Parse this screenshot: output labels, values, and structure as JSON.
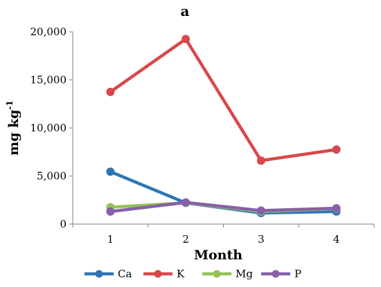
{
  "chart_data": {
    "type": "line",
    "title": "a",
    "xlabel": "Month",
    "ylabel": "mg kg",
    "ylabel_superscript": "-1",
    "categories": [
      "1",
      "2",
      "3",
      "4"
    ],
    "ylim": [
      0,
      20000
    ],
    "yticks": [
      0,
      5000,
      10000,
      15000,
      20000
    ],
    "ytick_labels": [
      "0",
      "5,000",
      "10,000",
      "15,000",
      "20,000"
    ],
    "grid": false,
    "legend_position": "bottom",
    "series": [
      {
        "name": "Ca",
        "color": "#2e75b6",
        "values": [
          5450,
          2200,
          1150,
          1300
        ]
      },
      {
        "name": "K",
        "color": "#d9474b",
        "values": [
          13750,
          19250,
          6600,
          7750
        ]
      },
      {
        "name": "Mg",
        "color": "#92c353",
        "values": [
          1750,
          2200,
          1300,
          1600
        ]
      },
      {
        "name": "P",
        "color": "#8660a8",
        "values": [
          1300,
          2250,
          1400,
          1650
        ]
      }
    ]
  }
}
